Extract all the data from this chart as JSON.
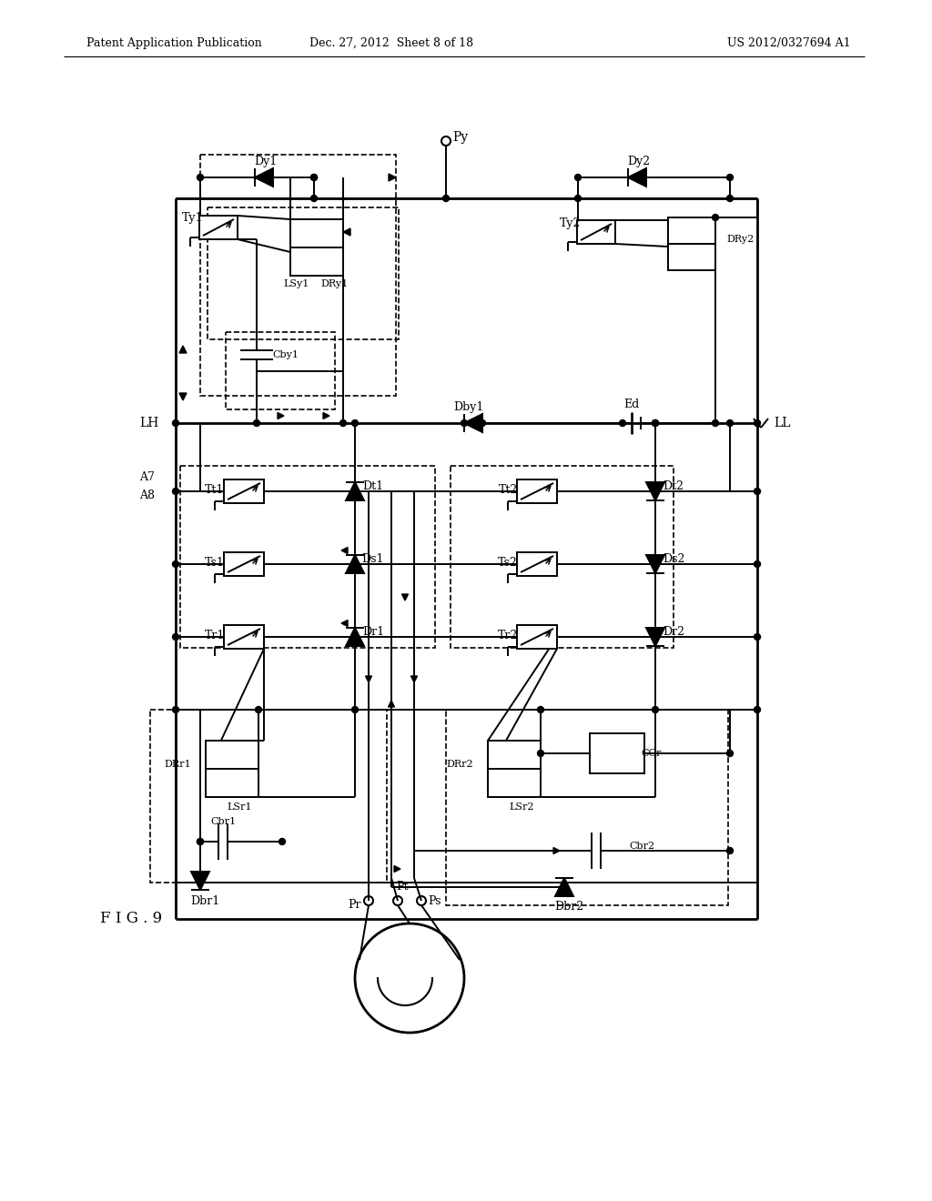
{
  "header_left": "Patent Application Publication",
  "header_mid": "Dec. 27, 2012  Sheet 8 of 18",
  "header_right": "US 2012/0327694 A1",
  "fig_label": "F I G . 9",
  "bg": "#ffffff"
}
